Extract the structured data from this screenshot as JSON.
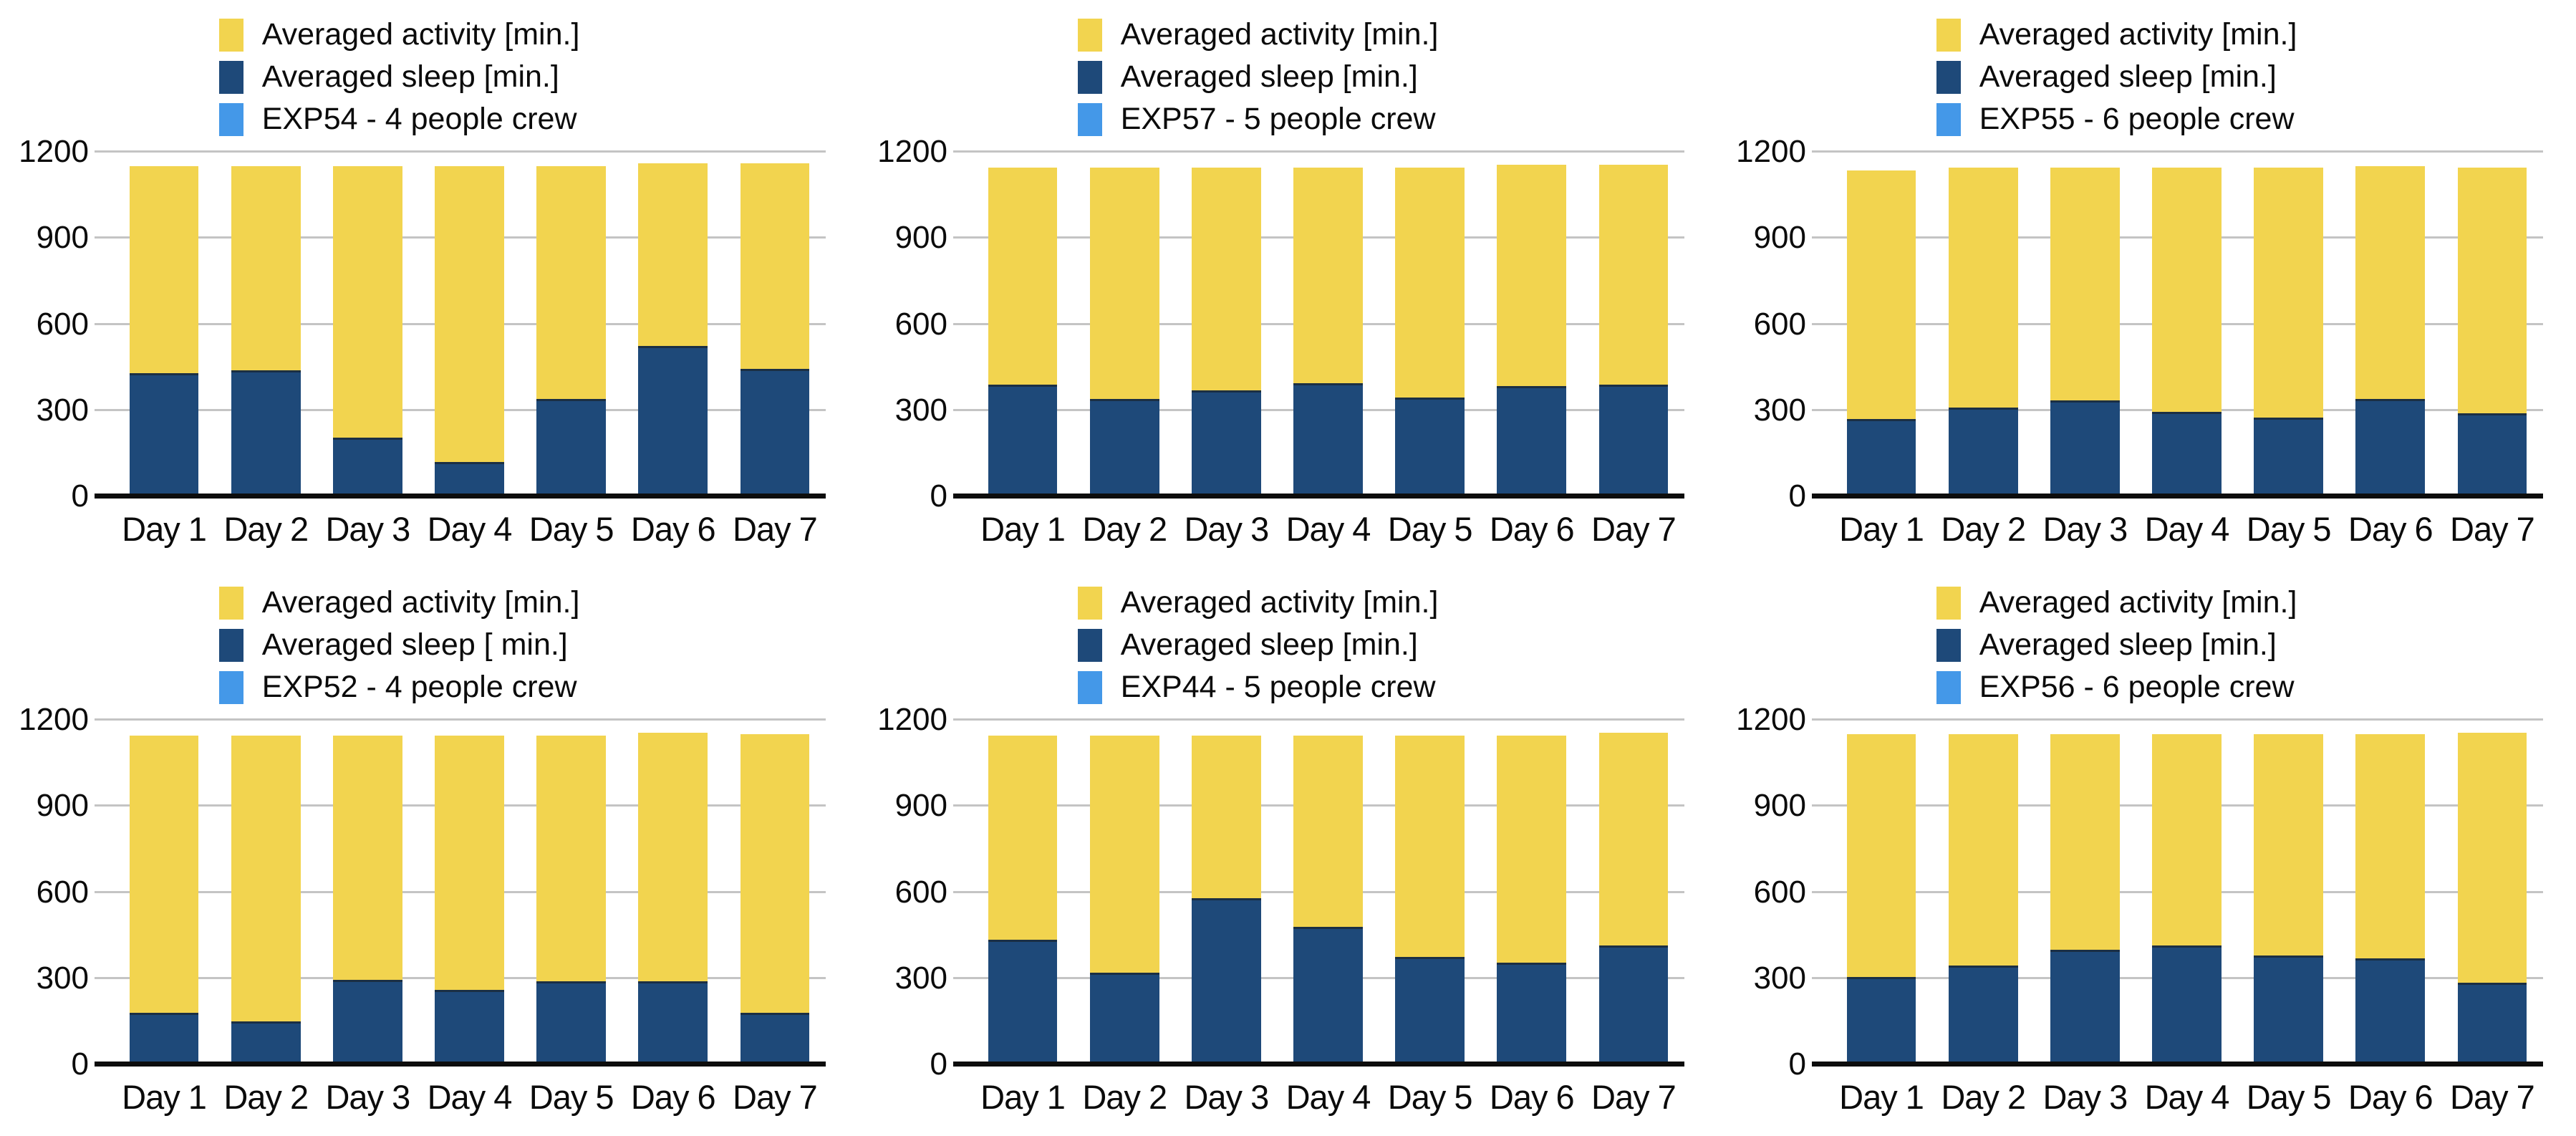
{
  "colors": {
    "activity": "#F2D44F",
    "sleep": "#1E4979",
    "exp": "#4498E8",
    "gridline": "#C4C4C4",
    "axis": "#0D0D0D",
    "text": "#0B0B0B",
    "background": "#FFFFFF"
  },
  "chart_data": [
    {
      "type": "bar",
      "stacked": true,
      "activity_label": "Averaged activity [min.]",
      "sleep_label": "Averaged sleep [min.]",
      "exp_label": "EXP54 - 4 people crew",
      "categories": [
        "Day 1",
        "Day 2",
        "Day 3",
        "Day 4",
        "Day 5",
        "Day 6",
        "Day 7"
      ],
      "series": [
        {
          "key": "sleep",
          "name": "Averaged sleep [min.]",
          "values": [
            430,
            440,
            205,
            120,
            340,
            525,
            445
          ]
        },
        {
          "key": "activity",
          "name": "Averaged activity [min.]",
          "values": [
            720,
            710,
            945,
            1030,
            810,
            635,
            715
          ]
        }
      ],
      "ylim": [
        0,
        1200
      ],
      "yticks": [
        0,
        300,
        600,
        900,
        1200
      ],
      "legend_position": "top",
      "grid": true
    },
    {
      "type": "bar",
      "stacked": true,
      "activity_label": "Averaged activity [min.]",
      "sleep_label": "Averaged sleep [min.]",
      "exp_label": "EXP57 - 5 people crew",
      "categories": [
        "Day 1",
        "Day 2",
        "Day 3",
        "Day 4",
        "Day 5",
        "Day 6",
        "Day 7"
      ],
      "series": [
        {
          "key": "sleep",
          "name": "Averaged sleep [min.]",
          "values": [
            390,
            340,
            370,
            395,
            345,
            385,
            390
          ]
        },
        {
          "key": "activity",
          "name": "Averaged activity [min.]",
          "values": [
            755,
            805,
            775,
            750,
            800,
            770,
            765
          ]
        }
      ],
      "ylim": [
        0,
        1200
      ],
      "yticks": [
        0,
        300,
        600,
        900,
        1200
      ],
      "legend_position": "top",
      "grid": true
    },
    {
      "type": "bar",
      "stacked": true,
      "activity_label": "Averaged activity [min.]",
      "sleep_label": "Averaged sleep [min.]",
      "exp_label": "EXP55 - 6 people crew",
      "categories": [
        "Day 1",
        "Day 2",
        "Day 3",
        "Day 4",
        "Day 5",
        "Day 6",
        "Day 7"
      ],
      "series": [
        {
          "key": "sleep",
          "name": "Averaged sleep [min.]",
          "values": [
            270,
            310,
            335,
            295,
            275,
            340,
            290
          ]
        },
        {
          "key": "activity",
          "name": "Averaged activity [min.]",
          "values": [
            865,
            835,
            810,
            850,
            870,
            810,
            855
          ]
        }
      ],
      "ylim": [
        0,
        1200
      ],
      "yticks": [
        0,
        300,
        600,
        900,
        1200
      ],
      "legend_position": "top",
      "grid": true
    },
    {
      "type": "bar",
      "stacked": true,
      "activity_label": "Averaged activity [min.]",
      "sleep_label": "Averaged sleep [ min.]",
      "exp_label": "EXP52 - 4 people crew",
      "categories": [
        "Day 1",
        "Day 2",
        "Day 3",
        "Day 4",
        "Day 5",
        "Day 6",
        "Day 7"
      ],
      "series": [
        {
          "key": "sleep",
          "name": "Averaged sleep [ min.]",
          "values": [
            180,
            150,
            295,
            260,
            290,
            290,
            180
          ]
        },
        {
          "key": "activity",
          "name": "Averaged activity [min.]",
          "values": [
            965,
            995,
            850,
            885,
            855,
            865,
            970
          ]
        }
      ],
      "ylim": [
        0,
        1200
      ],
      "yticks": [
        0,
        300,
        600,
        900,
        1200
      ],
      "legend_position": "top",
      "grid": true
    },
    {
      "type": "bar",
      "stacked": true,
      "activity_label": "Averaged activity [min.]",
      "sleep_label": "Averaged sleep [min.]",
      "exp_label": "EXP44 - 5 people crew",
      "categories": [
        "Day 1",
        "Day 2",
        "Day 3",
        "Day 4",
        "Day 5",
        "Day 6",
        "Day 7"
      ],
      "series": [
        {
          "key": "sleep",
          "name": "Averaged sleep [min.]",
          "values": [
            435,
            320,
            580,
            480,
            375,
            355,
            415
          ]
        },
        {
          "key": "activity",
          "name": "Averaged activity [min.]",
          "values": [
            710,
            825,
            565,
            665,
            770,
            790,
            740
          ]
        }
      ],
      "ylim": [
        0,
        1200
      ],
      "yticks": [
        0,
        300,
        600,
        900,
        1200
      ],
      "legend_position": "top",
      "grid": true
    },
    {
      "type": "bar",
      "stacked": true,
      "activity_label": "Averaged activity [min.]",
      "sleep_label": "Averaged sleep [min.]",
      "exp_label": "EXP56 - 6 people crew",
      "categories": [
        "Day 1",
        "Day 2",
        "Day 3",
        "Day 4",
        "Day 5",
        "Day 6",
        "Day 7"
      ],
      "series": [
        {
          "key": "sleep",
          "name": "Averaged sleep [min.]",
          "values": [
            305,
            345,
            400,
            415,
            380,
            370,
            285
          ]
        },
        {
          "key": "activity",
          "name": "Averaged activity [min.]",
          "values": [
            845,
            805,
            750,
            735,
            770,
            780,
            870
          ]
        }
      ],
      "ylim": [
        0,
        1200
      ],
      "yticks": [
        0,
        300,
        600,
        900,
        1200
      ],
      "legend_position": "top",
      "grid": true
    }
  ]
}
